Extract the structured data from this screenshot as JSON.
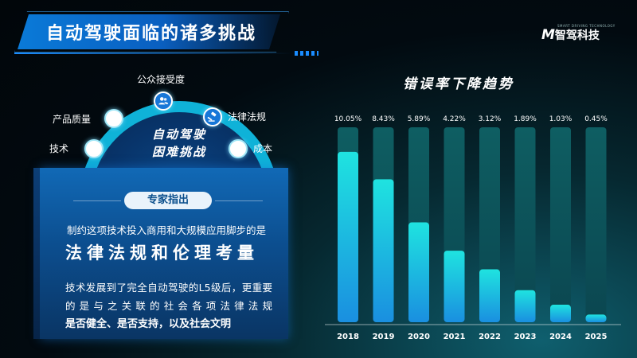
{
  "header": {
    "title": "自动驾驶面临的诸多挑战",
    "logo_mark": "M",
    "logo_text": "智驾科技",
    "logo_sub": "SMART DRIVING TECHNOLOGY"
  },
  "challenges": {
    "center_line1": "自动驾驶",
    "center_line2": "困难挑战",
    "nodes": [
      {
        "label": "技术",
        "icon": "circle"
      },
      {
        "label": "产品质量",
        "icon": "circle"
      },
      {
        "label": "公众接受度",
        "icon": "users-icon"
      },
      {
        "label": "法律法规",
        "icon": "gavel-icon"
      },
      {
        "label": "成本",
        "icon": "circle"
      }
    ]
  },
  "expert": {
    "badge": "专家指出",
    "line1": "制约这项技术投入商用和大规模应用脚步的是",
    "emphasis": "法律法规和伦理考量",
    "body1": "技术发展到了完全自动驾驶的L5级后，更重要",
    "body2": "的 是 与 之 关 联 的 社 会 各 项 法 律 法 规",
    "body3": "是否健全、是否支持，以及社会文明"
  },
  "chart_data": {
    "type": "bar",
    "title": "错误率下降趋势",
    "categories": [
      "2018",
      "2019",
      "2020",
      "2021",
      "2022",
      "2023",
      "2024",
      "2025"
    ],
    "values": [
      10.05,
      8.43,
      5.89,
      4.22,
      3.12,
      1.89,
      1.03,
      0.45
    ],
    "value_labels": [
      "10.05%",
      "8.43%",
      "5.89%",
      "4.22%",
      "3.12%",
      "1.89%",
      "1.03%",
      "0.45%"
    ],
    "ylim": [
      0,
      11.5
    ],
    "colors": {
      "track": "#0e5e62",
      "fill_top": "#1fe3e0",
      "fill_bottom": "#1a8fe0"
    }
  }
}
